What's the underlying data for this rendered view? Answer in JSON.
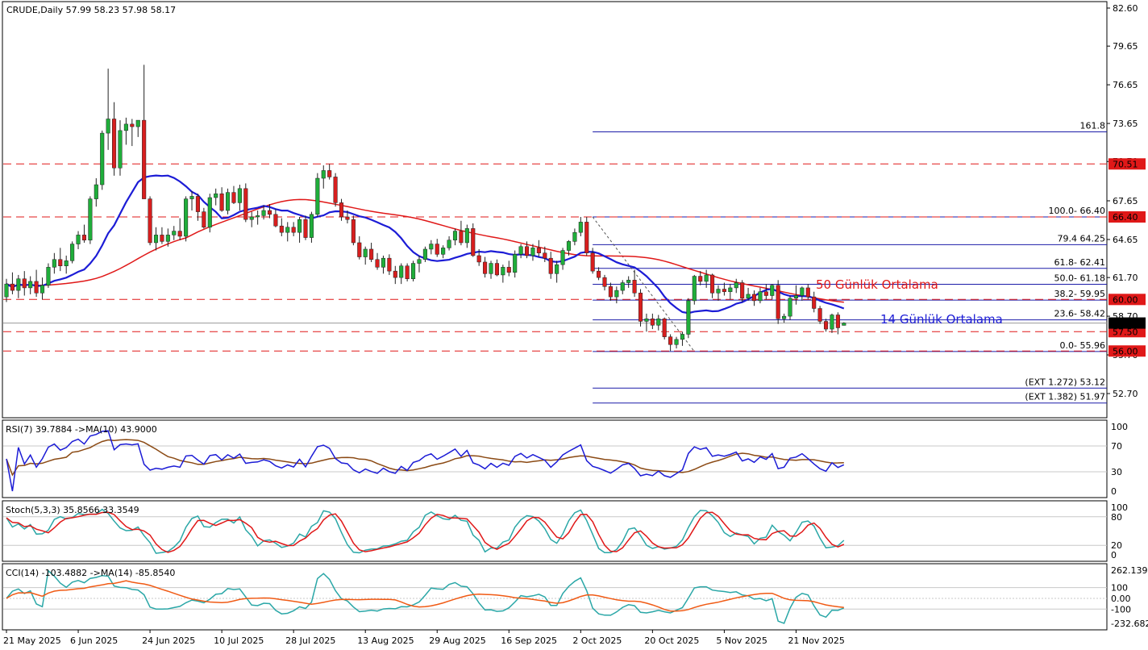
{
  "header": {
    "symbol": "CRUDE,Daily",
    "ohlc": "57.99 58.23 57.98 58.17"
  },
  "colors": {
    "bull": "#1fae3a",
    "bear": "#d81e1e",
    "ma14": "#1c1cd6",
    "ma50": "#e01818",
    "fib": "#1c1ca8",
    "level": "#e01818",
    "rsi": "#1c1cd6",
    "rsi_ma": "#8b4a14",
    "stoch_main": "#2aa7a7",
    "stoch_signal": "#e01818",
    "cci": "#2aa7a7",
    "cci_ma": "#f05a14",
    "grid": "#c8c8c8"
  },
  "chart_data": [
    {
      "type": "candlestick",
      "title": "CRUDE,Daily",
      "x_dates": [
        "21 May 2025",
        "6 Jun 2025",
        "24 Jun 2025",
        "10 Jul 2025",
        "28 Jul 2025",
        "13 Aug 2025",
        "29 Aug 2025",
        "16 Sep 2025",
        "2 Oct 2025",
        "20 Oct 2025",
        "5 Nov 2025",
        "21 Nov 2025"
      ],
      "ylim": [
        51.2,
        82.6
      ],
      "price_ticks": [
        "82.60",
        "79.65",
        "76.65",
        "73.65",
        "70.70",
        "67.65",
        "64.65",
        "61.70",
        "58.70",
        "55.70",
        "52.70"
      ],
      "ohlc": [
        [
          60.2,
          61.6,
          59.8,
          61.2
        ],
        [
          61.2,
          62.1,
          60.4,
          60.7
        ],
        [
          60.7,
          61.9,
          60.1,
          61.6
        ],
        [
          61.6,
          62.2,
          60.3,
          60.9
        ],
        [
          60.9,
          61.8,
          60.4,
          61.4
        ],
        [
          61.4,
          62.3,
          60.2,
          60.5
        ],
        [
          60.5,
          61.7,
          60.0,
          61.1
        ],
        [
          61.1,
          62.8,
          60.9,
          62.5
        ],
        [
          62.5,
          63.6,
          62.0,
          63.1
        ],
        [
          63.1,
          64.0,
          62.2,
          62.6
        ],
        [
          62.6,
          63.4,
          62.0,
          63.0
        ],
        [
          63.0,
          64.5,
          62.8,
          64.3
        ],
        [
          64.3,
          65.3,
          63.9,
          65.0
        ],
        [
          65.0,
          65.8,
          64.4,
          64.6
        ],
        [
          64.6,
          68.0,
          64.3,
          67.8
        ],
        [
          67.8,
          69.4,
          67.2,
          68.9
        ],
        [
          68.9,
          73.1,
          68.5,
          72.9
        ],
        [
          72.9,
          77.9,
          71.6,
          74.0
        ],
        [
          74.0,
          75.3,
          69.6,
          70.2
        ],
        [
          70.2,
          73.9,
          69.6,
          73.1
        ],
        [
          73.1,
          74.1,
          72.0,
          73.6
        ],
        [
          73.6,
          74.0,
          71.9,
          73.4
        ],
        [
          73.4,
          73.9,
          72.6,
          73.9
        ],
        [
          73.9,
          78.2,
          67.8,
          67.8
        ],
        [
          67.8,
          68.0,
          64.2,
          64.4
        ],
        [
          64.4,
          65.6,
          63.8,
          65.0
        ],
        [
          65.0,
          65.6,
          64.3,
          64.5
        ],
        [
          64.5,
          65.5,
          64.1,
          65.0
        ],
        [
          65.0,
          65.7,
          64.6,
          65.3
        ],
        [
          65.3,
          66.3,
          64.6,
          64.9
        ],
        [
          64.9,
          68.0,
          64.5,
          67.8
        ],
        [
          67.8,
          68.4,
          66.9,
          68.0
        ],
        [
          68.0,
          68.2,
          66.1,
          66.8
        ],
        [
          66.8,
          67.1,
          65.5,
          65.6
        ],
        [
          65.6,
          68.2,
          65.2,
          67.9
        ],
        [
          67.9,
          68.6,
          67.3,
          68.2
        ],
        [
          68.2,
          68.7,
          66.8,
          66.9
        ],
        [
          66.9,
          68.6,
          66.6,
          68.3
        ],
        [
          68.3,
          68.8,
          67.4,
          67.5
        ],
        [
          67.5,
          68.9,
          66.9,
          68.6
        ],
        [
          68.6,
          69.0,
          66.0,
          66.2
        ],
        [
          66.2,
          66.8,
          65.6,
          66.4
        ],
        [
          66.4,
          66.9,
          65.8,
          66.5
        ],
        [
          66.5,
          67.3,
          66.2,
          66.9
        ],
        [
          66.9,
          67.4,
          66.3,
          66.6
        ],
        [
          66.6,
          67.0,
          65.6,
          65.7
        ],
        [
          65.7,
          66.3,
          64.9,
          65.2
        ],
        [
          65.2,
          66.0,
          64.5,
          65.6
        ],
        [
          65.6,
          66.0,
          64.9,
          65.2
        ],
        [
          65.2,
          66.4,
          64.4,
          66.2
        ],
        [
          66.2,
          66.5,
          64.6,
          64.8
        ],
        [
          64.8,
          66.8,
          64.4,
          66.6
        ],
        [
          66.6,
          69.8,
          66.4,
          69.4
        ],
        [
          69.4,
          70.4,
          68.6,
          70.0
        ],
        [
          70.0,
          70.5,
          69.3,
          69.5
        ],
        [
          69.5,
          69.8,
          67.2,
          67.5
        ],
        [
          67.5,
          67.8,
          66.1,
          66.4
        ],
        [
          66.4,
          66.9,
          65.9,
          66.2
        ],
        [
          66.2,
          66.5,
          64.2,
          64.4
        ],
        [
          64.4,
          64.9,
          63.1,
          63.3
        ],
        [
          63.3,
          64.1,
          62.7,
          63.9
        ],
        [
          63.9,
          64.4,
          62.9,
          63.1
        ],
        [
          63.1,
          63.6,
          62.3,
          62.5
        ],
        [
          62.5,
          63.4,
          62.0,
          63.2
        ],
        [
          63.2,
          63.5,
          61.9,
          62.2
        ],
        [
          62.2,
          62.6,
          61.2,
          61.7
        ],
        [
          61.7,
          62.8,
          61.2,
          62.6
        ],
        [
          62.6,
          62.8,
          61.4,
          61.6
        ],
        [
          61.6,
          63.0,
          61.4,
          62.8
        ],
        [
          62.8,
          63.4,
          62.1,
          63.1
        ],
        [
          63.1,
          64.1,
          62.9,
          63.9
        ],
        [
          63.9,
          64.6,
          63.5,
          64.3
        ],
        [
          64.3,
          64.7,
          63.3,
          63.5
        ],
        [
          63.5,
          64.2,
          63.2,
          64.0
        ],
        [
          64.0,
          64.9,
          63.8,
          64.6
        ],
        [
          64.6,
          65.5,
          64.2,
          65.3
        ],
        [
          65.3,
          66.1,
          64.2,
          64.4
        ],
        [
          64.4,
          65.8,
          64.0,
          65.5
        ],
        [
          65.5,
          65.9,
          63.3,
          63.4
        ],
        [
          63.4,
          63.9,
          62.6,
          62.9
        ],
        [
          62.9,
          63.3,
          61.7,
          62.0
        ],
        [
          62.0,
          63.0,
          61.6,
          62.8
        ],
        [
          62.8,
          63.1,
          61.8,
          61.9
        ],
        [
          61.9,
          62.7,
          61.3,
          62.5
        ],
        [
          62.5,
          63.0,
          61.8,
          62.1
        ],
        [
          62.1,
          63.8,
          61.7,
          63.5
        ],
        [
          63.5,
          64.3,
          63.2,
          64.1
        ],
        [
          64.1,
          64.5,
          63.2,
          63.4
        ],
        [
          63.4,
          64.3,
          63.0,
          64.0
        ],
        [
          64.0,
          64.6,
          63.3,
          63.6
        ],
        [
          63.6,
          64.1,
          62.9,
          63.2
        ],
        [
          63.2,
          63.7,
          61.6,
          62.0
        ],
        [
          62.0,
          63.0,
          61.3,
          62.7
        ],
        [
          62.7,
          64.0,
          62.3,
          63.8
        ],
        [
          63.8,
          64.6,
          63.4,
          64.5
        ],
        [
          64.5,
          65.5,
          64.2,
          65.2
        ],
        [
          65.2,
          66.4,
          64.9,
          66.0
        ],
        [
          66.0,
          66.4,
          63.4,
          63.6
        ],
        [
          63.6,
          64.0,
          62.0,
          62.2
        ],
        [
          62.2,
          62.5,
          61.5,
          61.7
        ],
        [
          61.7,
          61.9,
          60.7,
          61.0
        ],
        [
          61.0,
          61.3,
          59.9,
          60.2
        ],
        [
          60.2,
          61.0,
          59.7,
          60.7
        ],
        [
          60.7,
          61.5,
          60.4,
          61.3
        ],
        [
          61.3,
          61.8,
          60.9,
          61.5
        ],
        [
          61.5,
          62.3,
          60.2,
          60.5
        ],
        [
          60.5,
          60.8,
          57.9,
          58.3
        ],
        [
          58.3,
          58.9,
          57.5,
          58.5
        ],
        [
          58.5,
          58.9,
          57.7,
          58.0
        ],
        [
          58.0,
          58.8,
          57.6,
          58.5
        ],
        [
          58.5,
          58.6,
          56.9,
          57.1
        ],
        [
          57.1,
          57.3,
          56.0,
          56.5
        ],
        [
          56.5,
          57.1,
          56.2,
          56.9
        ],
        [
          56.9,
          57.5,
          56.4,
          57.3
        ],
        [
          57.3,
          60.1,
          57.0,
          59.9
        ],
        [
          59.9,
          61.9,
          59.6,
          61.8
        ],
        [
          61.8,
          62.2,
          61.1,
          61.4
        ],
        [
          61.4,
          62.3,
          60.9,
          61.9
        ],
        [
          61.9,
          62.0,
          60.1,
          60.5
        ],
        [
          60.5,
          61.1,
          59.9,
          60.8
        ],
        [
          60.8,
          61.3,
          60.3,
          60.6
        ],
        [
          60.6,
          61.2,
          60.0,
          60.9
        ],
        [
          60.9,
          61.6,
          60.5,
          61.3
        ],
        [
          61.3,
          61.5,
          59.8,
          60.1
        ],
        [
          60.1,
          60.9,
          59.9,
          60.4
        ],
        [
          60.4,
          60.7,
          59.5,
          59.9
        ],
        [
          59.9,
          60.9,
          59.7,
          60.6
        ],
        [
          60.6,
          61.2,
          60.0,
          60.3
        ],
        [
          60.3,
          61.2,
          60.0,
          61.1
        ],
        [
          61.1,
          61.5,
          58.1,
          58.5
        ],
        [
          58.5,
          58.9,
          58.2,
          58.7
        ],
        [
          58.7,
          60.3,
          58.4,
          60.1
        ],
        [
          60.1,
          61.1,
          59.6,
          60.3
        ],
        [
          60.3,
          61.0,
          59.9,
          60.9
        ],
        [
          60.9,
          61.2,
          60.0,
          60.2
        ],
        [
          60.2,
          60.6,
          59.0,
          59.3
        ],
        [
          59.3,
          59.5,
          58.1,
          58.3
        ],
        [
          58.3,
          58.5,
          57.5,
          57.7
        ],
        [
          57.7,
          58.9,
          57.4,
          58.8
        ],
        [
          58.8,
          59.0,
          57.3,
          57.8
        ],
        [
          57.99,
          58.23,
          57.98,
          58.17
        ]
      ],
      "horizontal_levels": [
        {
          "value": 70.51,
          "label": "70.51"
        },
        {
          "value": 66.4,
          "label": "66.40"
        },
        {
          "value": 60.0,
          "label": "60.00"
        },
        {
          "value": 57.5,
          "label": "57.50"
        },
        {
          "value": 56.0,
          "label": "56.00"
        }
      ],
      "current_price": {
        "value": 58.17,
        "label": "58.17"
      },
      "fibonacci": [
        {
          "value": 73.0,
          "label": "161.8"
        },
        {
          "value": 66.4,
          "label": "100.0- 66.40"
        },
        {
          "value": 64.25,
          "label": "79.4 64.25"
        },
        {
          "value": 62.41,
          "label": "61.8- 62.41"
        },
        {
          "value": 61.18,
          "label": "50.0- 61.18"
        },
        {
          "value": 59.95,
          "label": "38.2- 59.95"
        },
        {
          "value": 58.42,
          "label": "23.6- 58.42"
        },
        {
          "value": 55.96,
          "label": "0.0- 55.96"
        },
        {
          "value": 53.12,
          "label": "(EXT 1.272)  53.12"
        },
        {
          "value": 51.97,
          "label": "(EXT 1.382)  51.97"
        }
      ],
      "annotations": [
        {
          "text": "50 Günlük Ortalama",
          "series": "ma50"
        },
        {
          "text": "14 Günlük Ortalama",
          "series": "ma14"
        }
      ],
      "ma_periods": {
        "fast": 14,
        "slow": 50
      }
    },
    {
      "type": "line",
      "title": "RSI(7) 39.7884  ->MA(10) 43.9000",
      "ylim": [
        0,
        100
      ],
      "y_ticks": [
        "100",
        "70",
        "30",
        "0"
      ],
      "levels": [
        70,
        30
      ],
      "periods": {
        "rsi": 7,
        "ma": 10
      }
    },
    {
      "type": "line",
      "title": "Stoch(5,3,3) 35.8566 33.3549",
      "ylim": [
        0,
        100
      ],
      "y_ticks": [
        "100",
        "80",
        "20",
        "0"
      ],
      "levels": [
        80,
        20
      ],
      "periods": {
        "k": 5,
        "d": 3,
        "slowing": 3
      }
    },
    {
      "type": "line",
      "title": "CCI(14) -103.4882  ->MA(14) -85.8540",
      "ylim": [
        -232.682,
        262.139
      ],
      "y_ticks": [
        "262.139",
        "100",
        "0.00",
        "-100",
        "-232.682"
      ],
      "levels": [
        100,
        0,
        -100
      ],
      "periods": {
        "cci": 14,
        "ma": 14
      }
    }
  ]
}
